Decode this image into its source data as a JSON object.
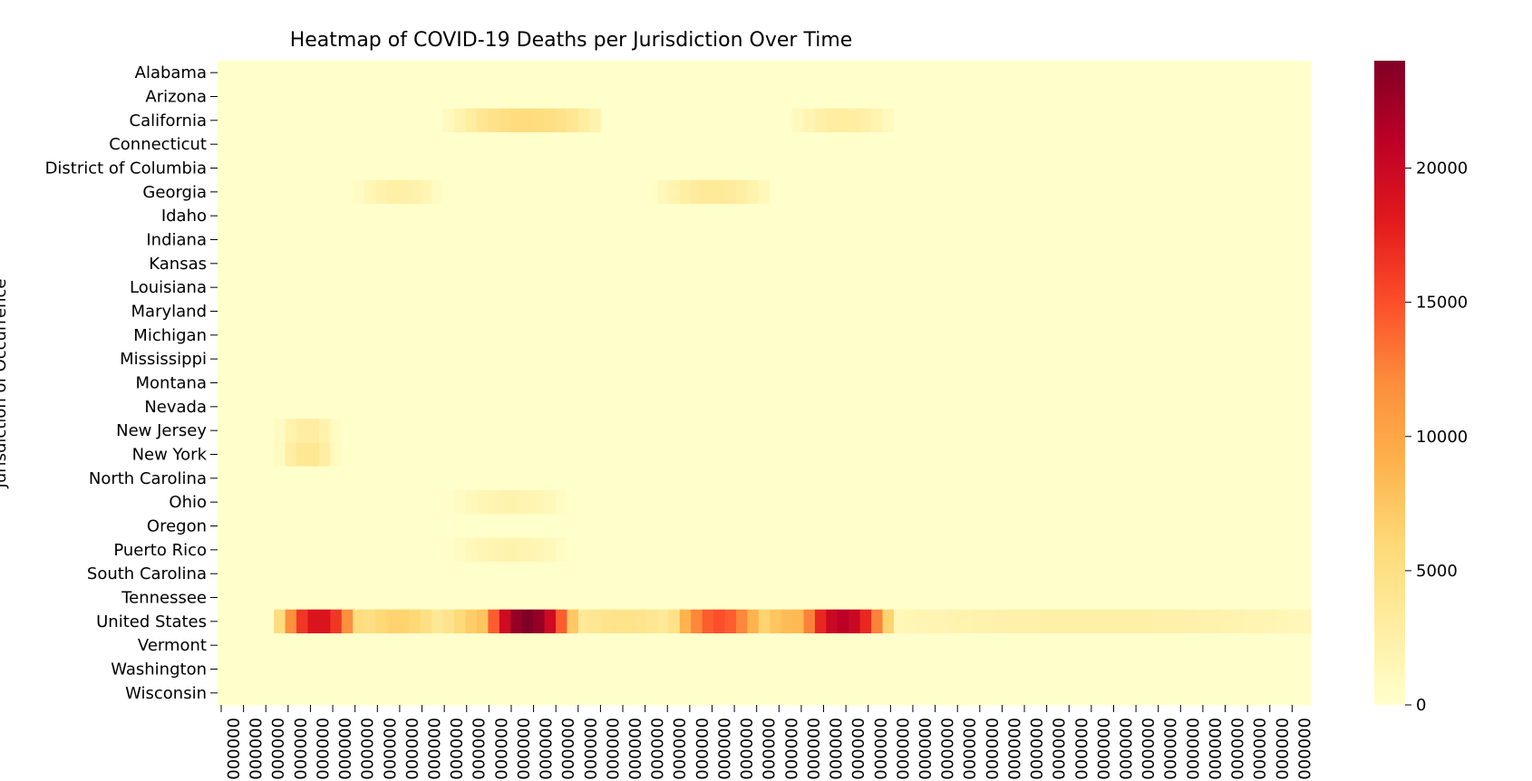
{
  "chart_data": {
    "type": "heatmap",
    "title": "Heatmap of COVID-19 Deaths per Jurisdiction Over Time",
    "ylabel": "Jurisdiction of Occurrence",
    "xlabel": "",
    "colormap": "YlOrRd",
    "colormap_stops": [
      "#ffffcc",
      "#ffeda0",
      "#fed976",
      "#feb24c",
      "#fd8d3c",
      "#fc4e2a",
      "#e31a1c",
      "#bd0026",
      "#800026"
    ],
    "value_range": [
      0,
      24000
    ],
    "colorbar_ticks": [
      "0",
      "5000",
      "10000",
      "15000",
      "20000"
    ],
    "row_labels": [
      "Alabama",
      "Arizona",
      "California",
      "Connecticut",
      "District of Columbia",
      "Georgia",
      "Idaho",
      "Indiana",
      "Kansas",
      "Louisiana",
      "Maryland",
      "Michigan",
      "Mississippi",
      "Montana",
      "Nevada",
      "New Jersey",
      "New York",
      "North Carolina",
      "Ohio",
      "Oregon",
      "Puerto Rico",
      "South Carolina",
      "Tennessee",
      "United States",
      "Vermont",
      "Washington",
      "Wisconsin"
    ],
    "x_tick_label": "000000",
    "x_tick_count": 49,
    "columns": 97,
    "grid": false,
    "colorbar": "right",
    "hotspots": [
      {
        "row": "United States",
        "x": [
          6,
          11
        ],
        "peak": 19000
      },
      {
        "row": "United States",
        "x": [
          12,
          19
        ],
        "peak": 6500
      },
      {
        "row": "United States",
        "x": [
          20,
          29
        ],
        "peak": 8000
      },
      {
        "row": "United States",
        "x": [
          24,
          30
        ],
        "peak": 24000
      },
      {
        "row": "United States",
        "x": [
          30,
          41
        ],
        "peak": 4500
      },
      {
        "row": "United States",
        "x": [
          41,
          47
        ],
        "peak": 15000
      },
      {
        "row": "United States",
        "x": [
          47,
          55
        ],
        "peak": 8500
      },
      {
        "row": "United States",
        "x": [
          52,
          58
        ],
        "peak": 21000
      },
      {
        "row": "United States",
        "x": [
          58,
          97
        ],
        "peak": 2500
      },
      {
        "row": "California",
        "x": [
          22,
          32
        ],
        "peak": 5500
      },
      {
        "row": "California",
        "x": [
          52,
          58
        ],
        "peak": 3000
      },
      {
        "row": "Georgia",
        "x": [
          40,
          47
        ],
        "peak": 3500
      },
      {
        "row": "Georgia",
        "x": [
          13,
          18
        ],
        "peak": 2500
      },
      {
        "row": "New York",
        "x": [
          6,
          9
        ],
        "peak": 4000
      },
      {
        "row": "New Jersey",
        "x": [
          6,
          9
        ],
        "peak": 3000
      },
      {
        "row": "Ohio",
        "x": [
          22,
          29
        ],
        "peak": 2000
      },
      {
        "row": "Puerto Rico",
        "x": [
          22,
          29
        ],
        "peak": 2000
      }
    ]
  }
}
